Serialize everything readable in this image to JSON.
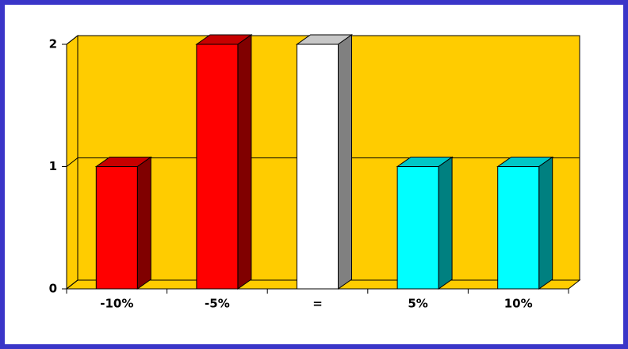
{
  "chart_data": {
    "type": "bar3d",
    "categories": [
      "-10%",
      "-5%",
      "=",
      "5%",
      "10%"
    ],
    "values": [
      1,
      2,
      2,
      1,
      1
    ],
    "colors": [
      "#ff0000",
      "#ff0000",
      "#ffffff",
      "#00ffff",
      "#00ffff"
    ],
    "wall_color": "#ffcc00",
    "ylim": [
      0,
      2
    ],
    "yticks": [
      0,
      1,
      2
    ],
    "grid": true
  }
}
